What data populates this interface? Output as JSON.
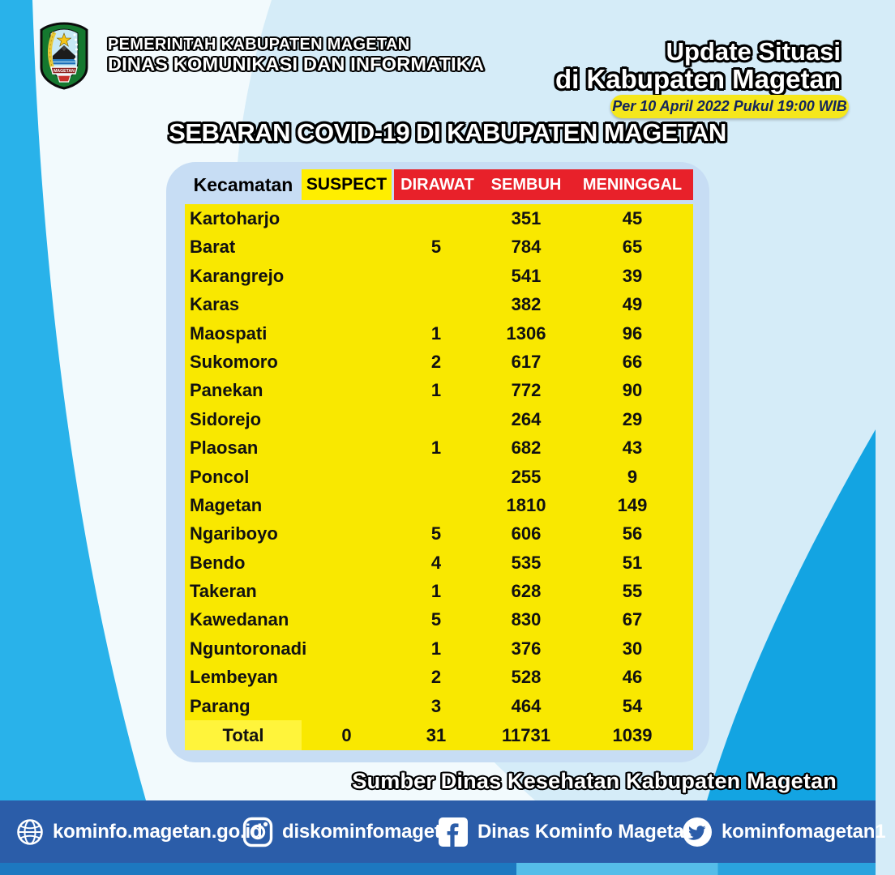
{
  "header": {
    "agency_line1": "PEMERINTAH KABUPATEN MAGETAN",
    "agency_line2": "DINAS KOMUNIKASI DAN INFORMATIKA",
    "update_line1": "Update Situasi",
    "update_line2": "di Kabupaten Magetan",
    "timestamp": "Per 10 April 2022 Pukul 19:00 WIB",
    "logo_icon": "magetan-regency-seal"
  },
  "title": "SEBARAN COVID-19 DI KABUPATEN MAGETAN",
  "table": {
    "columns": [
      "Kecamatan",
      "SUSPECT",
      "DIRAWAT",
      "SEMBUH",
      "MENINGGAL"
    ],
    "rows": [
      {
        "kecamatan": "Kartoharjo",
        "suspect": "",
        "dirawat": "",
        "sembuh": "351",
        "meninggal": "45"
      },
      {
        "kecamatan": "Barat",
        "suspect": "",
        "dirawat": "5",
        "sembuh": "784",
        "meninggal": "65"
      },
      {
        "kecamatan": "Karangrejo",
        "suspect": "",
        "dirawat": "",
        "sembuh": "541",
        "meninggal": "39"
      },
      {
        "kecamatan": "Karas",
        "suspect": "",
        "dirawat": "",
        "sembuh": "382",
        "meninggal": "49"
      },
      {
        "kecamatan": "Maospati",
        "suspect": "",
        "dirawat": "1",
        "sembuh": "1306",
        "meninggal": "96"
      },
      {
        "kecamatan": "Sukomoro",
        "suspect": "",
        "dirawat": "2",
        "sembuh": "617",
        "meninggal": "66"
      },
      {
        "kecamatan": "Panekan",
        "suspect": "",
        "dirawat": "1",
        "sembuh": "772",
        "meninggal": "90"
      },
      {
        "kecamatan": "Sidorejo",
        "suspect": "",
        "dirawat": "",
        "sembuh": "264",
        "meninggal": "29"
      },
      {
        "kecamatan": "Plaosan",
        "suspect": "",
        "dirawat": "1",
        "sembuh": "682",
        "meninggal": "43"
      },
      {
        "kecamatan": "Poncol",
        "suspect": "",
        "dirawat": "",
        "sembuh": "255",
        "meninggal": "9"
      },
      {
        "kecamatan": "Magetan",
        "suspect": "",
        "dirawat": "",
        "sembuh": "1810",
        "meninggal": "149"
      },
      {
        "kecamatan": "Ngariboyo",
        "suspect": "",
        "dirawat": "5",
        "sembuh": "606",
        "meninggal": "56"
      },
      {
        "kecamatan": "Bendo",
        "suspect": "",
        "dirawat": "4",
        "sembuh": "535",
        "meninggal": "51"
      },
      {
        "kecamatan": "Takeran",
        "suspect": "",
        "dirawat": "1",
        "sembuh": "628",
        "meninggal": "55"
      },
      {
        "kecamatan": "Kawedanan",
        "suspect": "",
        "dirawat": "5",
        "sembuh": "830",
        "meninggal": "67"
      },
      {
        "kecamatan": "Nguntoronadi",
        "suspect": "",
        "dirawat": "1",
        "sembuh": "376",
        "meninggal": "30"
      },
      {
        "kecamatan": "Lembeyan",
        "suspect": "",
        "dirawat": "2",
        "sembuh": "528",
        "meninggal": "46"
      },
      {
        "kecamatan": "Parang",
        "suspect": "",
        "dirawat": "3",
        "sembuh": "464",
        "meninggal": "54"
      }
    ],
    "total": {
      "label": "Total",
      "suspect": "0",
      "dirawat": "31",
      "sembuh": "11731",
      "meninggal": "1039"
    }
  },
  "source": "Sumber Dinas Kesehatan Kabupaten Magetan",
  "footer": {
    "items": [
      {
        "icon": "globe-icon",
        "label": "kominfo.magetan.go.id"
      },
      {
        "icon": "instagram-icon",
        "label": "diskominfomagetan"
      },
      {
        "icon": "facebook-icon",
        "label": "Dinas Kominfo Magetan"
      },
      {
        "icon": "twitter-icon",
        "label": "kominfomagetan1"
      }
    ]
  },
  "colors": {
    "base_bg": "#d5ecf8",
    "white_band": "#f2fafd",
    "cyan_left": "#29b2ea",
    "cyan_right": "#13a4e2",
    "card": "#c7ddf4",
    "table_yellow": "#f9e800",
    "suspect_yellow": "#ffee00",
    "total_cell_yellow": "#fff43b",
    "header_red": "#e8212a",
    "footer_bar": "#2b5da9",
    "pill_yellow": "#f5e71c",
    "pill_text": "#13255c"
  },
  "chart_data": {
    "type": "table",
    "title": "SEBARAN COVID-19 DI KABUPATEN MAGETAN",
    "as_of": "Per 10 April 2022 Pukul 19:00 WIB",
    "columns": [
      "Kecamatan",
      "SUSPECT",
      "DIRAWAT",
      "SEMBUH",
      "MENINGGAL"
    ],
    "rows": [
      [
        "Kartoharjo",
        null,
        null,
        351,
        45
      ],
      [
        "Barat",
        null,
        5,
        784,
        65
      ],
      [
        "Karangrejo",
        null,
        null,
        541,
        39
      ],
      [
        "Karas",
        null,
        null,
        382,
        49
      ],
      [
        "Maospati",
        null,
        1,
        1306,
        96
      ],
      [
        "Sukomoro",
        null,
        2,
        617,
        66
      ],
      [
        "Panekan",
        null,
        1,
        772,
        90
      ],
      [
        "Sidorejo",
        null,
        null,
        264,
        29
      ],
      [
        "Plaosan",
        null,
        1,
        682,
        43
      ],
      [
        "Poncol",
        null,
        null,
        255,
        9
      ],
      [
        "Magetan",
        null,
        null,
        1810,
        149
      ],
      [
        "Ngariboyo",
        null,
        5,
        606,
        56
      ],
      [
        "Bendo",
        null,
        4,
        535,
        51
      ],
      [
        "Takeran",
        null,
        1,
        628,
        55
      ],
      [
        "Kawedanan",
        null,
        5,
        830,
        67
      ],
      [
        "Nguntoronadi",
        null,
        1,
        376,
        30
      ],
      [
        "Lembeyan",
        null,
        2,
        528,
        46
      ],
      [
        "Parang",
        null,
        3,
        464,
        54
      ]
    ],
    "total": [
      "Total",
      0,
      31,
      11731,
      1039
    ],
    "source": "Sumber Dinas Kesehatan Kabupaten Magetan"
  }
}
